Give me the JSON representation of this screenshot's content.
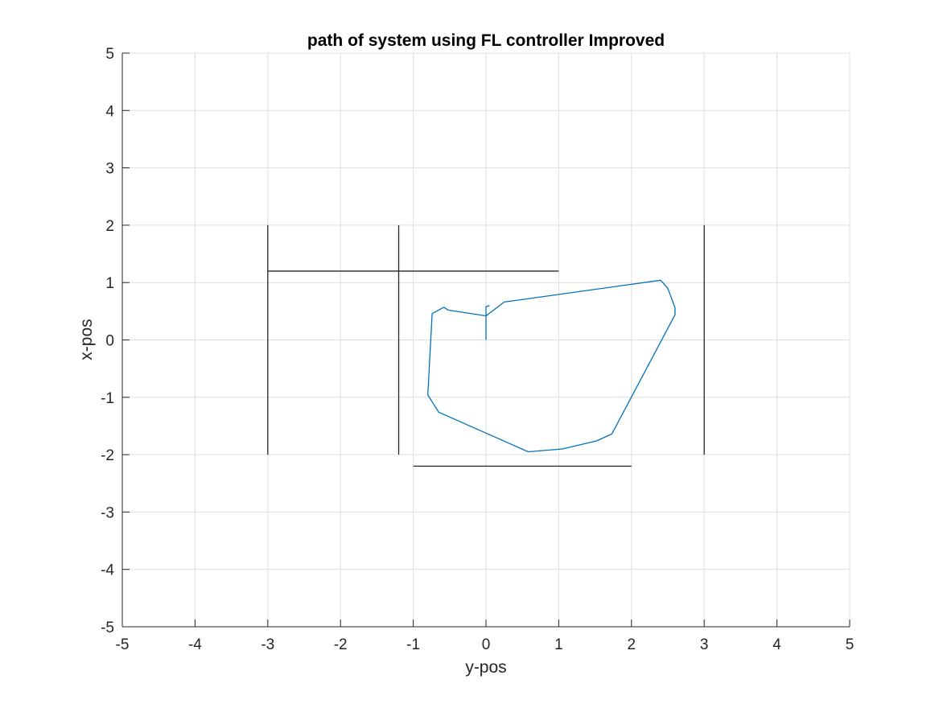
{
  "chart_data": {
    "type": "line",
    "title": "path of system using FL controller Improved",
    "xlabel": "y-pos",
    "ylabel": "x-pos",
    "xlim": [
      -5,
      5
    ],
    "ylim": [
      -5,
      5
    ],
    "xticks": [
      -5,
      -4,
      -3,
      -2,
      -1,
      0,
      1,
      2,
      3,
      4,
      5
    ],
    "yticks": [
      -5,
      -4,
      -3,
      -2,
      -1,
      0,
      1,
      2,
      3,
      4,
      5
    ],
    "xtick_labels": [
      "-5",
      "-4",
      "-3",
      "-2",
      "-1",
      "0",
      "1",
      "2",
      "3",
      "4",
      "5"
    ],
    "ytick_labels": [
      "-5",
      "-4",
      "-3",
      "-2",
      "-1",
      "0",
      "1",
      "2",
      "3",
      "4",
      "5"
    ],
    "grid": true,
    "series": [
      {
        "color": "#0072bd",
        "x": [
          0,
          0,
          0.25,
          2.4,
          2.5,
          2.6,
          2.6,
          1.73,
          1.52,
          1.05,
          0.58,
          -0.65,
          -0.8,
          -0.74,
          -0.58,
          -0.52,
          0,
          0,
          0.05
        ],
        "y": [
          0,
          0.42,
          0.66,
          1.04,
          0.9,
          0.56,
          0.44,
          -1.64,
          -1.76,
          -1.9,
          -1.95,
          -1.26,
          -0.96,
          0.46,
          0.57,
          0.52,
          0.42,
          0.58,
          0.6
        ]
      }
    ],
    "walls": [
      {
        "x": [
          -3,
          -3
        ],
        "y": [
          -2,
          2
        ],
        "color": "#262626"
      },
      {
        "x": [
          -1.2,
          -1.2
        ],
        "y": [
          -2,
          2
        ],
        "color": "#262626"
      },
      {
        "x": [
          3,
          3
        ],
        "y": [
          -2,
          2
        ],
        "color": "#262626"
      },
      {
        "x": [
          -3,
          1
        ],
        "y": [
          1.2,
          1.2
        ],
        "color": "#262626"
      },
      {
        "x": [
          -1,
          2
        ],
        "y": [
          -2.2,
          -2.2
        ],
        "color": "#262626"
      }
    ]
  }
}
